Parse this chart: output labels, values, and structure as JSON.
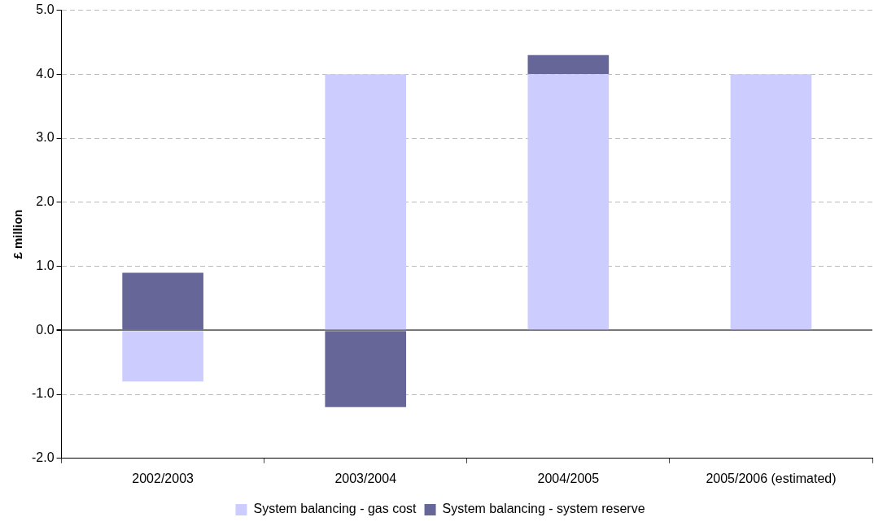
{
  "chart_data": {
    "type": "bar",
    "ylabel": "£ million",
    "stacked": true,
    "grid": "y",
    "legend": "bottom",
    "categories": [
      "2002/2003",
      "2003/2004",
      "2004/2005",
      "2005/2006 (estimated)"
    ],
    "series": [
      {
        "name": "System balancing - gas cost",
        "color": "#ccccff",
        "values": [
          -0.8,
          4.0,
          4.0,
          4.0
        ]
      },
      {
        "name": "System balancing - system reserve",
        "color": "#666699",
        "values": [
          0.9,
          -1.2,
          0.3,
          0
        ]
      }
    ],
    "ylim": [
      -2,
      5
    ],
    "yticks": [
      {
        "value": -2,
        "label": "-2.0"
      },
      {
        "value": -1,
        "label": "-1.0"
      },
      {
        "value": 0,
        "label": "0.0"
      },
      {
        "value": 1,
        "label": "1.0"
      },
      {
        "value": 2,
        "label": "2.0"
      },
      {
        "value": 3,
        "label": "3.0"
      },
      {
        "value": 4,
        "label": "4.0"
      },
      {
        "value": 5,
        "label": "5.0"
      }
    ]
  }
}
